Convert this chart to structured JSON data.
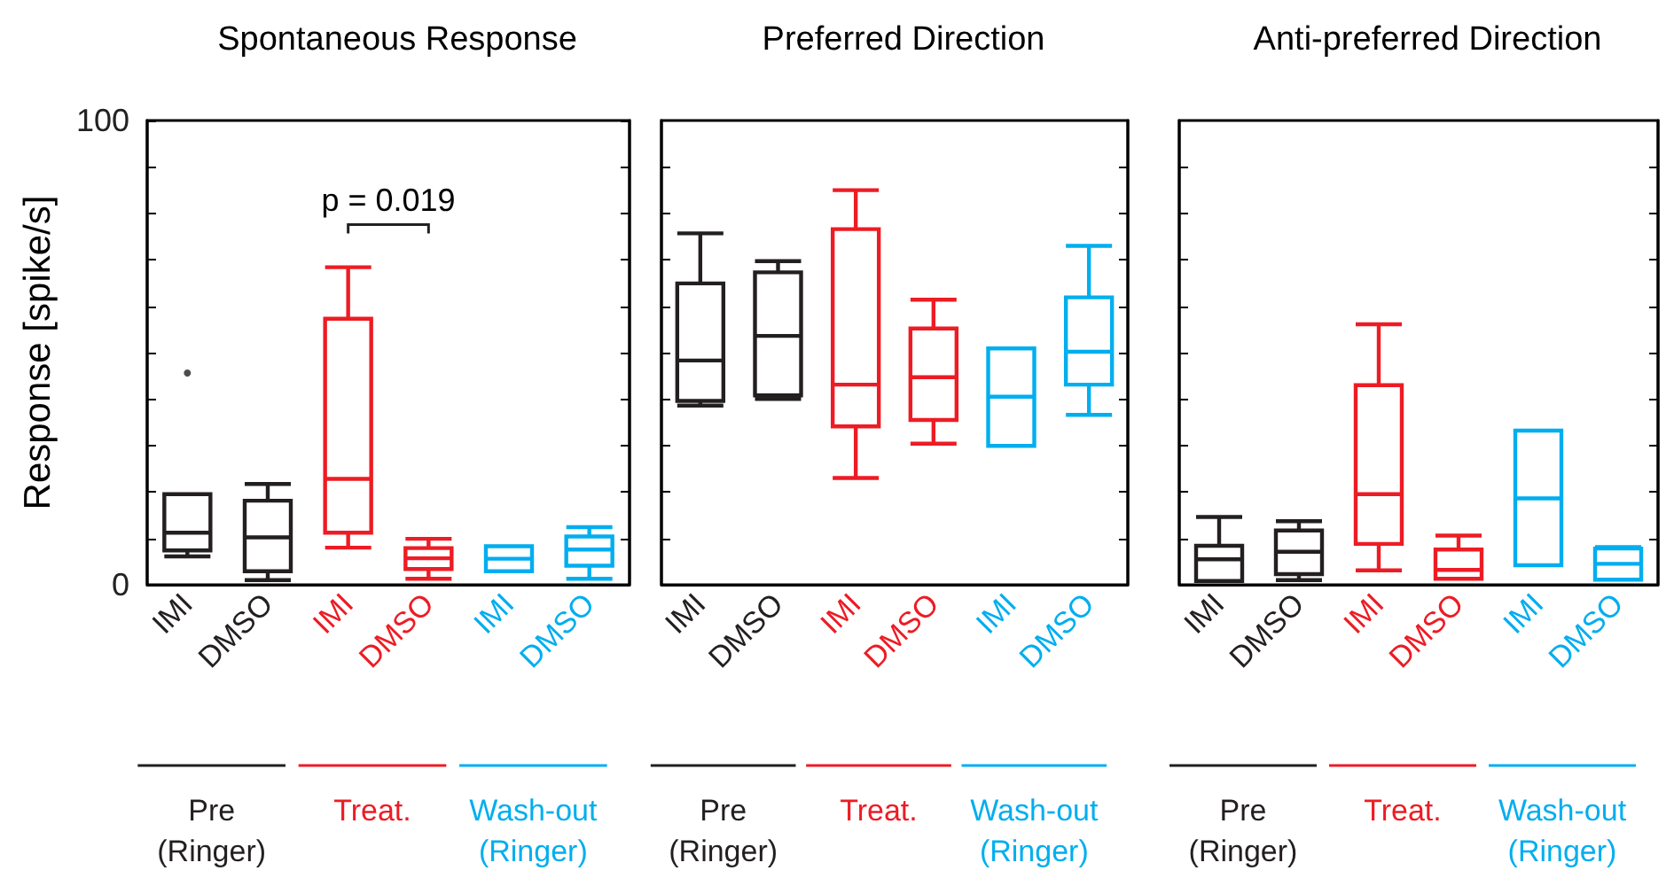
{
  "chart_data": [
    {
      "type": "box",
      "title": "Spontaneous Response",
      "ylabel": "Response [spike/s]",
      "categories": [
        "IMI",
        "DMSO",
        "IMI",
        "DMSO",
        "IMI",
        "DMSO"
      ],
      "ylim": [
        0,
        100
      ],
      "yticks": [
        0,
        {
          "value": 10,
          "label": null
        },
        {
          "value": 20,
          "label": null
        },
        {
          "value": 30,
          "label": null
        },
        {
          "value": 40,
          "label": null
        },
        {
          "value": 50,
          "label": null
        },
        {
          "value": 60,
          "label": null
        },
        {
          "value": 70,
          "label": null
        },
        {
          "value": 80,
          "label": null
        },
        {
          "value": 90,
          "label": null
        },
        100
      ],
      "grid": false,
      "legend": "bottom",
      "annotations": [
        "p = 0.019"
      ],
      "series": [
        {
          "name": "Pre (Ringer)",
          "color": "#231f20",
          "boxes": [
            {
              "low": 6.1,
              "q1": 7.4,
              "median": 11.2,
              "q3": 19.5,
              "high": 19.5,
              "outliers": [
                45.6
              ]
            },
            {
              "low": 1,
              "q1": 2.9,
              "median": 10.2,
              "q3": 18.1,
              "high": 21.7
            },
            null,
            null,
            null,
            null
          ]
        },
        {
          "name": "Treat.",
          "color": "#ed1c24",
          "boxes": [
            null,
            null,
            {
              "low": 8.0,
              "q1": 11.2,
              "median": 22.8,
              "q3": 57.3,
              "high": 68.4
            },
            {
              "low": 1.3,
              "q1": 3.4,
              "median": 5.7,
              "q3": 7.9,
              "high": 9.9
            },
            null,
            null
          ]
        },
        {
          "name": "Wash-out (Ringer)",
          "color": "#00aeef",
          "boxes": [
            null,
            null,
            null,
            null,
            {
              "low": 2.9,
              "q1": 2.9,
              "median": 5.6,
              "q3": 8.3,
              "high": 8.3
            },
            {
              "low": 1.3,
              "q1": 4.1,
              "median": 7.6,
              "q3": 10.4,
              "high": 12.4
            }
          ]
        }
      ]
    },
    {
      "type": "box",
      "title": "Preferred Direction",
      "categories": [
        "IMI",
        "DMSO",
        "IMI",
        "DMSO",
        "IMI",
        "DMSO"
      ],
      "ylim": [
        0,
        100
      ],
      "yticks": [
        {
          "value": 10,
          "label": null
        },
        {
          "value": 20,
          "label": null
        },
        {
          "value": 30,
          "label": null
        },
        {
          "value": 40,
          "label": null
        },
        {
          "value": 50,
          "label": null
        },
        {
          "value": 60,
          "label": null
        },
        {
          "value": 70,
          "label": null
        },
        {
          "value": 80,
          "label": null
        },
        {
          "value": 90,
          "label": null
        }
      ],
      "tick_labels": "x",
      "grid": false,
      "legend": "bottom",
      "series": [
        {
          "name": "Pre (Ringer)",
          "color": "#231f20",
          "boxes": [
            {
              "low": 38.6,
              "q1": 39.6,
              "median": 48.3,
              "q3": 64.9,
              "high": 75.7
            },
            {
              "low": 40.0,
              "q1": 40.8,
              "median": 53.6,
              "q3": 67.3,
              "high": 69.7
            },
            null,
            null,
            null,
            null
          ]
        },
        {
          "name": "Treat.",
          "color": "#ed1c24",
          "boxes": [
            null,
            null,
            {
              "low": 23.0,
              "q1": 34.1,
              "median": 43.1,
              "q3": 76.6,
              "high": 85.0
            },
            {
              "low": 30.4,
              "q1": 35.5,
              "median": 44.7,
              "q3": 55.2,
              "high": 61.4
            },
            null,
            null
          ]
        },
        {
          "name": "Wash-out (Ringer)",
          "color": "#00aeef",
          "boxes": [
            null,
            null,
            null,
            null,
            {
              "low": 29.9,
              "q1": 29.9,
              "median": 40.5,
              "q3": 50.9,
              "high": 50.9
            },
            {
              "low": 36.6,
              "q1": 43.1,
              "median": 50.2,
              "q3": 61.9,
              "high": 73.0
            }
          ]
        }
      ]
    },
    {
      "type": "box",
      "title": "Anti-preferred Direction",
      "categories": [
        "IMI",
        "DMSO",
        "IMI",
        "DMSO",
        "IMI",
        "DMSO"
      ],
      "ylim": [
        0,
        100
      ],
      "yticks": [
        {
          "value": 10,
          "label": null
        },
        {
          "value": 20,
          "label": null
        },
        {
          "value": 30,
          "label": null
        },
        {
          "value": 40,
          "label": null
        },
        {
          "value": 50,
          "label": null
        },
        {
          "value": 60,
          "label": null
        },
        {
          "value": 70,
          "label": null
        },
        {
          "value": 80,
          "label": null
        },
        {
          "value": 90,
          "label": null
        }
      ],
      "tick_labels": "x",
      "grid": false,
      "legend": "bottom",
      "series": [
        {
          "name": "Pre (Ringer)",
          "color": "#231f20",
          "boxes": [
            {
              "low": 0.8,
              "q1": 0.8,
              "median": 5.5,
              "q3": 8.4,
              "high": 14.6
            },
            {
              "low": 1,
              "q1": 2.3,
              "median": 7.1,
              "q3": 11.7,
              "high": 13.7
            },
            null,
            null,
            null,
            null
          ]
        },
        {
          "name": "Treat.",
          "color": "#ed1c24",
          "boxes": [
            null,
            null,
            {
              "low": 3.1,
              "q1": 8.8,
              "median": 19.5,
              "q3": 43.0,
              "high": 56.1
            },
            {
              "low": 1.3,
              "q1": 1.3,
              "median": 3.2,
              "q3": 7.6,
              "high": 10.6
            },
            null,
            null
          ]
        },
        {
          "name": "Wash-out (Ringer)",
          "color": "#00aeef",
          "boxes": [
            null,
            null,
            null,
            null,
            {
              "low": 4.2,
              "q1": 4.2,
              "median": 18.6,
              "q3": 33.2,
              "high": 33.2
            },
            {
              "low": 1.1,
              "q1": 1.1,
              "median": 4.5,
              "q3": 7.8,
              "high": 8.1
            }
          ]
        }
      ]
    }
  ]
}
